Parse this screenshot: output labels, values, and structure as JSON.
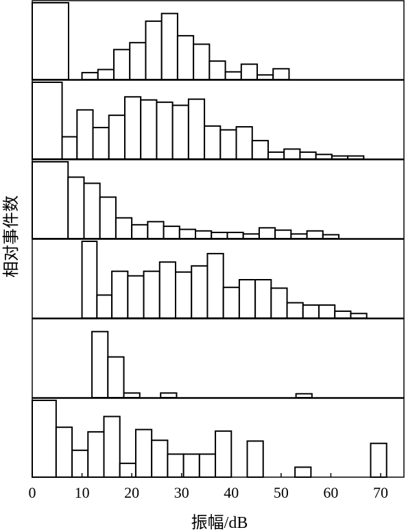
{
  "chart_data": {
    "type": "histogram",
    "layout": "stacked-panels",
    "xlabel": "振幅/dB",
    "ylabel": "相对事件数",
    "xlim": [
      0,
      75
    ],
    "xticks": [
      0,
      10,
      20,
      30,
      40,
      50,
      60,
      70
    ],
    "bin_width": 3.2,
    "grid": false,
    "panels": [
      {
        "bins": [
          {
            "x0": 0.0,
            "x1": 7.3,
            "value": 1.0
          },
          {
            "x0": 10.0,
            "x1": 13.2,
            "value": 0.09
          },
          {
            "x0": 13.2,
            "x1": 16.4,
            "value": 0.13
          },
          {
            "x0": 16.4,
            "x1": 19.6,
            "value": 0.39
          },
          {
            "x0": 19.6,
            "x1": 22.8,
            "value": 0.48
          },
          {
            "x0": 22.8,
            "x1": 26.0,
            "value": 0.76
          },
          {
            "x0": 26.0,
            "x1": 29.2,
            "value": 0.86
          },
          {
            "x0": 29.2,
            "x1": 32.4,
            "value": 0.57
          },
          {
            "x0": 32.4,
            "x1": 35.6,
            "value": 0.46
          },
          {
            "x0": 35.6,
            "x1": 38.8,
            "value": 0.24
          },
          {
            "x0": 38.8,
            "x1": 42.0,
            "value": 0.1
          },
          {
            "x0": 42.0,
            "x1": 45.2,
            "value": 0.2
          },
          {
            "x0": 45.2,
            "x1": 48.4,
            "value": 0.06
          },
          {
            "x0": 48.4,
            "x1": 51.6,
            "value": 0.14
          }
        ]
      },
      {
        "bins": [
          {
            "x0": 0.0,
            "x1": 6.0,
            "value": 1.0
          },
          {
            "x0": 6.0,
            "x1": 9.0,
            "value": 0.29
          },
          {
            "x0": 9.0,
            "x1": 12.2,
            "value": 0.64
          },
          {
            "x0": 12.2,
            "x1": 15.4,
            "value": 0.41
          },
          {
            "x0": 15.4,
            "x1": 18.6,
            "value": 0.57
          },
          {
            "x0": 18.6,
            "x1": 21.8,
            "value": 0.81
          },
          {
            "x0": 21.8,
            "x1": 25.0,
            "value": 0.77
          },
          {
            "x0": 25.0,
            "x1": 28.2,
            "value": 0.74
          },
          {
            "x0": 28.2,
            "x1": 31.4,
            "value": 0.7
          },
          {
            "x0": 31.4,
            "x1": 34.6,
            "value": 0.78
          },
          {
            "x0": 34.6,
            "x1": 37.8,
            "value": 0.43
          },
          {
            "x0": 37.8,
            "x1": 41.0,
            "value": 0.38
          },
          {
            "x0": 41.0,
            "x1": 44.2,
            "value": 0.42
          },
          {
            "x0": 44.2,
            "x1": 47.4,
            "value": 0.24
          },
          {
            "x0": 47.4,
            "x1": 50.6,
            "value": 0.09
          },
          {
            "x0": 50.6,
            "x1": 53.8,
            "value": 0.13
          },
          {
            "x0": 53.8,
            "x1": 57.0,
            "value": 0.09
          },
          {
            "x0": 57.0,
            "x1": 60.2,
            "value": 0.06
          },
          {
            "x0": 60.2,
            "x1": 63.4,
            "value": 0.04
          },
          {
            "x0": 63.4,
            "x1": 66.6,
            "value": 0.04
          }
        ]
      },
      {
        "bins": [
          {
            "x0": 0.0,
            "x1": 7.2,
            "value": 1.0
          },
          {
            "x0": 7.2,
            "x1": 10.4,
            "value": 0.8
          },
          {
            "x0": 10.4,
            "x1": 13.6,
            "value": 0.72
          },
          {
            "x0": 13.6,
            "x1": 16.8,
            "value": 0.54
          },
          {
            "x0": 16.8,
            "x1": 20.0,
            "value": 0.27
          },
          {
            "x0": 20.0,
            "x1": 23.2,
            "value": 0.18
          },
          {
            "x0": 23.2,
            "x1": 26.4,
            "value": 0.22
          },
          {
            "x0": 26.4,
            "x1": 29.6,
            "value": 0.16
          },
          {
            "x0": 29.6,
            "x1": 32.8,
            "value": 0.12
          },
          {
            "x0": 32.8,
            "x1": 36.0,
            "value": 0.1
          },
          {
            "x0": 36.0,
            "x1": 39.2,
            "value": 0.08
          },
          {
            "x0": 39.2,
            "x1": 42.4,
            "value": 0.08
          },
          {
            "x0": 42.4,
            "x1": 45.6,
            "value": 0.06
          },
          {
            "x0": 45.6,
            "x1": 48.8,
            "value": 0.14
          },
          {
            "x0": 48.8,
            "x1": 52.0,
            "value": 0.11
          },
          {
            "x0": 52.0,
            "x1": 55.2,
            "value": 0.06
          },
          {
            "x0": 55.2,
            "x1": 58.4,
            "value": 0.1
          },
          {
            "x0": 58.4,
            "x1": 61.6,
            "value": 0.05
          }
        ]
      },
      {
        "bins": [
          {
            "x0": 10.0,
            "x1": 13.0,
            "value": 1.0
          },
          {
            "x0": 13.0,
            "x1": 16.0,
            "value": 0.3
          },
          {
            "x0": 16.0,
            "x1": 19.2,
            "value": 0.61
          },
          {
            "x0": 19.2,
            "x1": 22.4,
            "value": 0.55
          },
          {
            "x0": 22.4,
            "x1": 25.6,
            "value": 0.61
          },
          {
            "x0": 25.6,
            "x1": 28.8,
            "value": 0.73
          },
          {
            "x0": 28.8,
            "x1": 32.0,
            "value": 0.6
          },
          {
            "x0": 32.0,
            "x1": 35.2,
            "value": 0.68
          },
          {
            "x0": 35.2,
            "x1": 38.4,
            "value": 0.84
          },
          {
            "x0": 38.4,
            "x1": 41.6,
            "value": 0.4
          },
          {
            "x0": 41.6,
            "x1": 44.8,
            "value": 0.5
          },
          {
            "x0": 44.8,
            "x1": 48.0,
            "value": 0.5
          },
          {
            "x0": 48.0,
            "x1": 51.2,
            "value": 0.39
          },
          {
            "x0": 51.2,
            "x1": 54.4,
            "value": 0.2
          },
          {
            "x0": 54.4,
            "x1": 57.6,
            "value": 0.17
          },
          {
            "x0": 57.6,
            "x1": 60.8,
            "value": 0.17
          },
          {
            "x0": 60.8,
            "x1": 64.0,
            "value": 0.09
          },
          {
            "x0": 64.0,
            "x1": 67.2,
            "value": 0.06
          }
        ]
      },
      {
        "bins": [
          {
            "x0": 12.0,
            "x1": 15.2,
            "value": 0.86
          },
          {
            "x0": 15.2,
            "x1": 18.4,
            "value": 0.53
          },
          {
            "x0": 18.4,
            "x1": 21.6,
            "value": 0.06
          },
          {
            "x0": 25.8,
            "x1": 29.0,
            "value": 0.06
          },
          {
            "x0": 53.0,
            "x1": 56.2,
            "value": 0.05
          }
        ]
      },
      {
        "bins": [
          {
            "x0": 0.0,
            "x1": 4.8,
            "value": 1.0
          },
          {
            "x0": 4.8,
            "x1": 8.0,
            "value": 0.65
          },
          {
            "x0": 8.0,
            "x1": 11.2,
            "value": 0.35
          },
          {
            "x0": 11.2,
            "x1": 14.4,
            "value": 0.59
          },
          {
            "x0": 14.4,
            "x1": 17.6,
            "value": 0.79
          },
          {
            "x0": 17.6,
            "x1": 20.8,
            "value": 0.18
          },
          {
            "x0": 20.8,
            "x1": 24.0,
            "value": 0.62
          },
          {
            "x0": 24.0,
            "x1": 27.2,
            "value": 0.48
          },
          {
            "x0": 27.2,
            "x1": 30.4,
            "value": 0.3
          },
          {
            "x0": 30.4,
            "x1": 33.6,
            "value": 0.3
          },
          {
            "x0": 33.6,
            "x1": 36.8,
            "value": 0.3
          },
          {
            "x0": 36.8,
            "x1": 40.0,
            "value": 0.6
          },
          {
            "x0": 43.2,
            "x1": 46.4,
            "value": 0.47
          },
          {
            "x0": 52.8,
            "x1": 56.0,
            "value": 0.13
          },
          {
            "x0": 68.0,
            "x1": 71.2,
            "value": 0.44
          }
        ]
      }
    ]
  }
}
